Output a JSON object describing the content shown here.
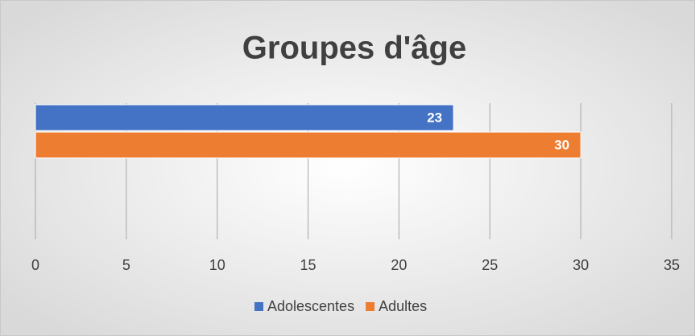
{
  "chart_data": {
    "type": "bar",
    "orientation": "horizontal",
    "title": "Groupes d'âge",
    "categories": [
      null
    ],
    "series": [
      {
        "name": "Adolescentes",
        "color": "#4472c4",
        "values": [
          23
        ]
      },
      {
        "name": "Adultes",
        "color": "#ed7d31",
        "values": [
          30
        ]
      }
    ],
    "xlim": [
      0,
      35
    ],
    "xticks": [
      0,
      5,
      10,
      15,
      20,
      25,
      30,
      35
    ],
    "grid": true,
    "legend": "bottom"
  }
}
